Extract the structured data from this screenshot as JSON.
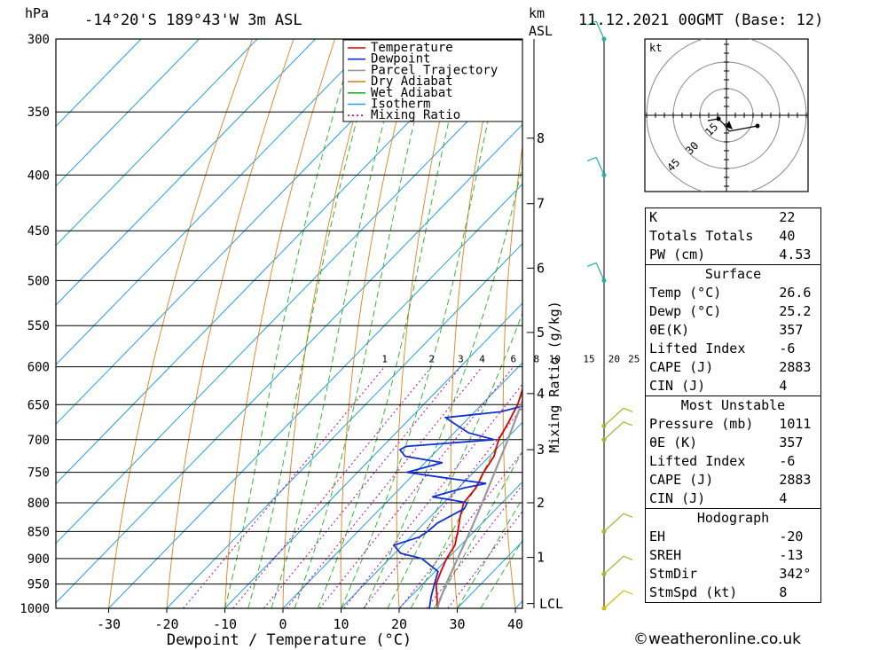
{
  "header": {
    "location": "-14°20'S  189°43'W  3m  ASL",
    "datetime": "11.12.2021  00GMT  (Base: 12)",
    "left_unit": "hPa",
    "right_unit_km": "km",
    "right_unit_asl": "ASL"
  },
  "chart_data": {
    "type": "line",
    "xlabel": "Dewpoint / Temperature (°C)",
    "ylabel": "hPa",
    "y2label": "Mixing Ratio (g/kg)",
    "pressure_levels": [
      300,
      350,
      400,
      450,
      500,
      550,
      600,
      650,
      700,
      750,
      800,
      850,
      900,
      950,
      1000
    ],
    "x_ticks": [
      -30,
      -20,
      -10,
      0,
      10,
      20,
      30,
      40
    ],
    "km_ticks": [
      {
        "label": "8",
        "p": 370
      },
      {
        "label": "7",
        "p": 425
      },
      {
        "label": "6",
        "p": 487
      },
      {
        "label": "5",
        "p": 558
      },
      {
        "label": "4",
        "p": 635
      },
      {
        "label": "3",
        "p": 715
      },
      {
        "label": "2",
        "p": 800
      },
      {
        "label": "1",
        "p": 898
      }
    ],
    "lcl_label": "LCL",
    "lcl_pressure": 990,
    "mixing_ratio_labels": [
      "1",
      "2",
      "3",
      "4",
      "6",
      "8",
      "10",
      "15",
      "20",
      "25"
    ],
    "legend": {
      "position": "top-right",
      "entries": [
        "Temperature",
        "Dewpoint",
        "Parcel Trajectory",
        "Dry Adiabat",
        "Wet Adiabat",
        "Isotherm",
        "Mixing Ratio"
      ]
    },
    "series": [
      {
        "name": "Temperature",
        "color": "#e00000",
        "points": [
          [
            1000,
            26.6
          ],
          [
            975,
            24.5
          ],
          [
            950,
            22.3
          ],
          [
            925,
            21.0
          ],
          [
            900,
            19.8
          ],
          [
            875,
            19.0
          ],
          [
            850,
            17.2
          ],
          [
            825,
            15.2
          ],
          [
            800,
            13.4
          ],
          [
            775,
            13.0
          ],
          [
            750,
            11.7
          ],
          [
            725,
            10.8
          ],
          [
            700,
            8.8
          ],
          [
            675,
            7.6
          ],
          [
            650,
            6.2
          ],
          [
            625,
            4.1
          ],
          [
            600,
            1.8
          ],
          [
            575,
            0.6
          ],
          [
            550,
            -1.4
          ],
          [
            525,
            -3.0
          ],
          [
            500,
            -4.9
          ],
          [
            475,
            -7.4
          ],
          [
            450,
            -9.7
          ],
          [
            425,
            -12.3
          ],
          [
            400,
            -15.5
          ],
          [
            375,
            -18.6
          ],
          [
            360,
            -21.0
          ]
        ]
      },
      {
        "name": "Dewpoint",
        "color": "#1030d0",
        "points": [
          [
            1000,
            25.2
          ],
          [
            975,
            23.5
          ],
          [
            950,
            22.0
          ],
          [
            925,
            20.5
          ],
          [
            900,
            15.5
          ],
          [
            890,
            11.0
          ],
          [
            875,
            8.5
          ],
          [
            860,
            11.5
          ],
          [
            850,
            12.0
          ],
          [
            835,
            12.3
          ],
          [
            810,
            14.5
          ],
          [
            800,
            14.0
          ],
          [
            795,
            10.8
          ],
          [
            790,
            7.0
          ],
          [
            775,
            11.0
          ],
          [
            768,
            14.0
          ],
          [
            760,
            7.0
          ],
          [
            750,
            -1.5
          ],
          [
            735,
            3.0
          ],
          [
            725,
            -4.5
          ],
          [
            715,
            -6.5
          ],
          [
            710,
            -6.0
          ],
          [
            700,
            8.0
          ],
          [
            690,
            2.5
          ],
          [
            675,
            -2.0
          ],
          [
            668,
            -4.0
          ],
          [
            660,
            4.5
          ],
          [
            650,
            8.0
          ],
          [
            625,
            8.0
          ],
          [
            600,
            7.0
          ],
          [
            590,
            7.0
          ],
          [
            575,
            9.0
          ],
          [
            560,
            9.5
          ],
          [
            550,
            9.0
          ],
          [
            525,
            7.0
          ],
          [
            500,
            4.5
          ],
          [
            475,
            2.6
          ],
          [
            450,
            0.0
          ],
          [
            425,
            -3.5
          ],
          [
            410,
            -5.5
          ],
          [
            400,
            -8.0
          ],
          [
            375,
            -12.8
          ],
          [
            350,
            -18.4
          ],
          [
            325,
            -22.0
          ],
          [
            300,
            -27.0
          ]
        ]
      },
      {
        "name": "Parcel Trajectory",
        "color": "#999999",
        "points": [
          [
            1000,
            26.6
          ],
          [
            990,
            26.0
          ],
          [
            950,
            24.0
          ],
          [
            900,
            21.7
          ],
          [
            850,
            19.3
          ],
          [
            800,
            16.6
          ],
          [
            750,
            13.6
          ],
          [
            700,
            10.4
          ],
          [
            650,
            6.8
          ],
          [
            600,
            2.8
          ],
          [
            550,
            -1.7
          ],
          [
            500,
            -6.7
          ],
          [
            450,
            -12.3
          ],
          [
            400,
            -18.8
          ],
          [
            380,
            -21.8
          ]
        ]
      }
    ],
    "wind_barb_pressures": [
      300,
      400,
      500,
      680,
      700,
      850,
      930,
      1000
    ],
    "hodograph": {
      "unit": "kt",
      "ring_labels": [
        "15",
        "30",
        "45"
      ]
    }
  },
  "indices": {
    "rows": [
      {
        "label": "K",
        "value": "22"
      },
      {
        "label": "Totals Totals",
        "value": "40"
      },
      {
        "label": "PW (cm)",
        "value": "4.53"
      }
    ],
    "surface": {
      "title": "Surface",
      "rows": [
        {
          "label": "Temp (°C)",
          "value": "26.6"
        },
        {
          "label": "Dewp (°C)",
          "value": "25.2"
        },
        {
          "label": "θE(K)",
          "value": "357"
        },
        {
          "label": "Lifted Index",
          "value": "-6"
        },
        {
          "label": "CAPE (J)",
          "value": "2883"
        },
        {
          "label": "CIN (J)",
          "value": "4"
        }
      ]
    },
    "most_unstable": {
      "title": "Most Unstable",
      "rows": [
        {
          "label": "Pressure (mb)",
          "value": "1011"
        },
        {
          "label": "θE (K)",
          "value": "357"
        },
        {
          "label": "Lifted Index",
          "value": "-6"
        },
        {
          "label": "CAPE (J)",
          "value": "2883"
        },
        {
          "label": "CIN (J)",
          "value": "4"
        }
      ]
    },
    "hodograph": {
      "title": "Hodograph",
      "rows": [
        {
          "label": "EH",
          "value": "-20"
        },
        {
          "label": "SREH",
          "value": "-13"
        },
        {
          "label": "StmDir",
          "value": "342°"
        },
        {
          "label": "StmSpd (kt)",
          "value": "8"
        }
      ]
    }
  },
  "footer": {
    "text": "©weatheronline.co.uk"
  }
}
